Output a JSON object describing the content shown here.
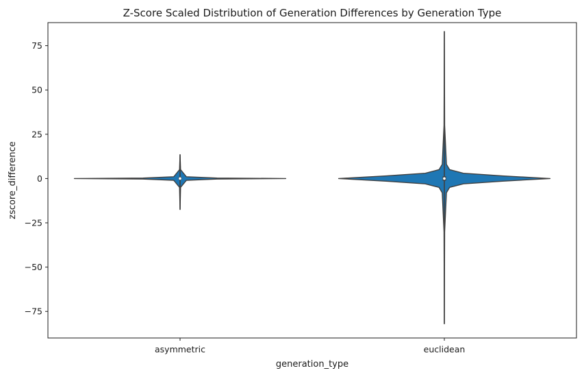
{
  "chart_data": {
    "type": "violin",
    "title": "Z-Score Scaled Distribution of Generation Differences by Generation Type",
    "xlabel": "generation_type",
    "ylabel": "zscore_difference",
    "categories": [
      "asymmetric",
      "euclidean"
    ],
    "ylim": [
      -90,
      88
    ],
    "yticks": [
      -75,
      -50,
      -25,
      0,
      25,
      50,
      75
    ],
    "ytick_labels": [
      "−75",
      "−50",
      "−25",
      "0",
      "25",
      "50",
      "75"
    ],
    "grid": false,
    "legend": "none",
    "colors": {
      "violin_fill": "#1f77b4",
      "edge": "#3f3f3f",
      "median": "#ffffff"
    },
    "violins": [
      {
        "category": "asymmetric",
        "min": -17.5,
        "q1": -0.3,
        "median": 0.0,
        "q3": 0.3,
        "max": 13.5,
        "whisker_low": -17.5,
        "whisker_high": 13.5,
        "profile": [
          [
            -17.5,
            0.0
          ],
          [
            -5,
            0.005
          ],
          [
            -1,
            0.06
          ],
          [
            -0.3,
            0.35
          ],
          [
            0,
            1.0
          ],
          [
            0.3,
            0.35
          ],
          [
            1,
            0.06
          ],
          [
            5,
            0.005
          ],
          [
            13.5,
            0.0
          ]
        ]
      },
      {
        "category": "euclidean",
        "min": -82.0,
        "q1": -1.2,
        "median": 0.0,
        "q3": 1.2,
        "max": 83.0,
        "whisker_low": -82.0,
        "whisker_high": 83.0,
        "profile": [
          [
            -82,
            0.0
          ],
          [
            -30,
            0.003
          ],
          [
            -8,
            0.02
          ],
          [
            -5,
            0.05
          ],
          [
            -3,
            0.18
          ],
          [
            -1.5,
            0.55
          ],
          [
            0,
            1.0
          ],
          [
            1.5,
            0.55
          ],
          [
            3,
            0.18
          ],
          [
            5,
            0.05
          ],
          [
            8,
            0.02
          ],
          [
            30,
            0.003
          ],
          [
            83,
            0.0
          ]
        ]
      }
    ]
  }
}
